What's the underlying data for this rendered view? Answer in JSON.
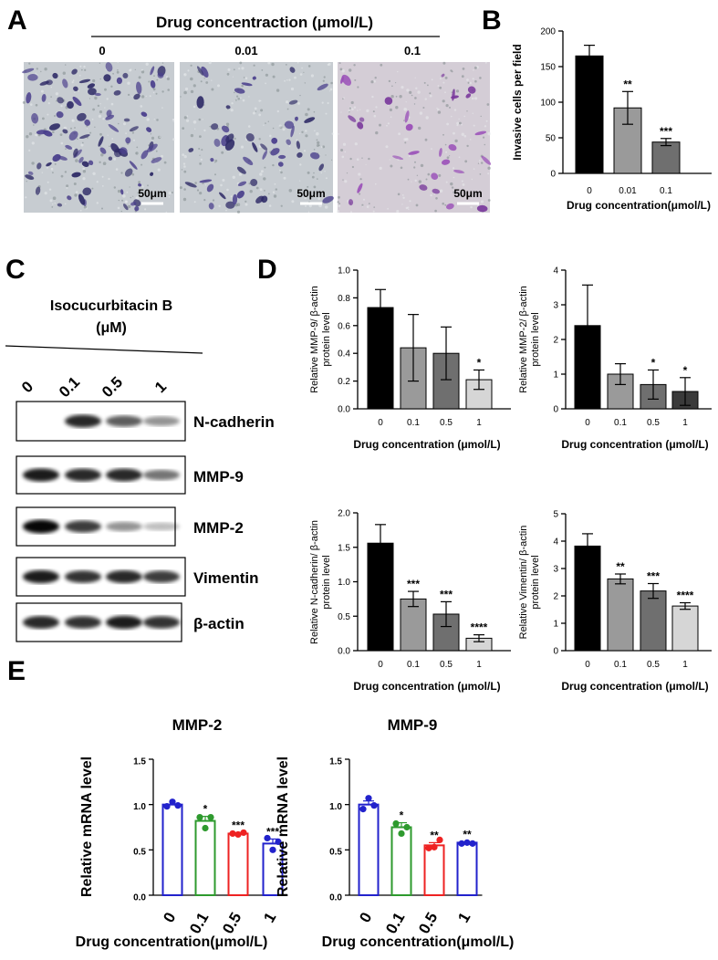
{
  "panels": {
    "A": "A",
    "B": "B",
    "C": "C",
    "D": "D",
    "E": "E"
  },
  "panel_a": {
    "title": "Drug concentraction (μmol/L)",
    "images": [
      {
        "label": "0",
        "scalebar": "50μm"
      },
      {
        "label": "0.01",
        "scalebar": "50μm"
      },
      {
        "label": "0.1",
        "scalebar": "50μm"
      }
    ]
  },
  "panel_c": {
    "treatment_line1": "Isocucurbitacin B",
    "treatment_line2": "(μM)",
    "lanes": [
      "0",
      "0.1",
      "0.5",
      "1"
    ],
    "blots": [
      {
        "label": "N-cadherin",
        "intensity": [
          0.0,
          0.85,
          0.6,
          0.35
        ]
      },
      {
        "label": "MMP-9",
        "intensity": [
          0.9,
          0.85,
          0.85,
          0.5
        ]
      },
      {
        "label": "MMP-2",
        "intensity": [
          1.0,
          0.75,
          0.35,
          0.15
        ]
      },
      {
        "label": "Vimentin",
        "intensity": [
          0.9,
          0.8,
          0.85,
          0.75
        ]
      },
      {
        "label": "β-actin",
        "intensity": [
          0.85,
          0.8,
          0.9,
          0.8
        ]
      }
    ]
  },
  "chart_data": [
    {
      "id": "B",
      "type": "bar",
      "categories": [
        "0",
        "0.01",
        "0.1"
      ],
      "values": [
        165,
        92,
        44
      ],
      "errors": [
        15,
        23,
        5
      ],
      "significance": [
        "",
        "**",
        "***"
      ],
      "xlabel": "Drug concentration(μmol/L)",
      "ylabel": "Invasive cells per field",
      "ylim": [
        0,
        200
      ],
      "yticks": [
        0,
        50,
        100,
        150,
        200
      ],
      "colors": [
        "#000000",
        "#9a9a9a",
        "#6f6f6f"
      ]
    },
    {
      "id": "D1",
      "type": "bar",
      "categories": [
        "0",
        "0.1",
        "0.5",
        "1"
      ],
      "values": [
        0.73,
        0.44,
        0.4,
        0.21
      ],
      "errors": [
        0.13,
        0.24,
        0.19,
        0.07
      ],
      "significance": [
        "",
        "",
        "",
        "*"
      ],
      "xlabel": "Drug concentration (μmol/L)",
      "ylabel_line1": "Relative MMP-9/ β-actin",
      "ylabel_line2": "protein level",
      "ylim": [
        0,
        1.0
      ],
      "yticks": [
        0.0,
        0.2,
        0.4,
        0.6,
        0.8,
        1.0
      ],
      "tick_format": "0.0",
      "colors": [
        "#000000",
        "#9a9a9a",
        "#6f6f6f",
        "#d6d6d6"
      ]
    },
    {
      "id": "D2",
      "type": "bar",
      "categories": [
        "0",
        "0.1",
        "0.5",
        "1"
      ],
      "values": [
        2.4,
        1.0,
        0.7,
        0.5
      ],
      "errors": [
        1.17,
        0.3,
        0.42,
        0.4
      ],
      "significance": [
        "",
        "",
        "*",
        "*"
      ],
      "xlabel": "Drug concentration (μmol/L)",
      "ylabel_line1": "Relative MMP-2/ β-actin",
      "ylabel_line2": "protein level",
      "ylim": [
        0,
        4
      ],
      "yticks": [
        0,
        1,
        2,
        3,
        4
      ],
      "tick_format": "0",
      "colors": [
        "#000000",
        "#9a9a9a",
        "#6f6f6f",
        "#3a3a3a"
      ]
    },
    {
      "id": "D3",
      "type": "bar",
      "categories": [
        "0",
        "0.1",
        "0.5",
        "1"
      ],
      "values": [
        1.56,
        0.75,
        0.53,
        0.18
      ],
      "errors": [
        0.27,
        0.11,
        0.18,
        0.05
      ],
      "significance": [
        "",
        "***",
        "***",
        "****"
      ],
      "xlabel": "Drug concentration (μmol/L)",
      "ylabel_line1": "Relative N-cadherin/ β-actin",
      "ylabel_line2": "protein level",
      "ylim": [
        0,
        2.0
      ],
      "yticks": [
        0.0,
        0.5,
        1.0,
        1.5,
        2.0
      ],
      "tick_format": "0.0",
      "colors": [
        "#000000",
        "#9a9a9a",
        "#6f6f6f",
        "#d6d6d6"
      ]
    },
    {
      "id": "D4",
      "type": "bar",
      "categories": [
        "0",
        "0.1",
        "0.5",
        "1"
      ],
      "values": [
        3.82,
        2.62,
        2.18,
        1.63
      ],
      "errors": [
        0.45,
        0.18,
        0.27,
        0.12
      ],
      "significance": [
        "",
        "**",
        "***",
        "****"
      ],
      "xlabel": "Drug concentration (μmol/L)",
      "ylabel_line1": "Relative Vimentin/ β-actin",
      "ylabel_line2": "protein level",
      "ylim": [
        0,
        5
      ],
      "yticks": [
        0,
        1,
        2,
        3,
        4,
        5
      ],
      "tick_format": "0",
      "colors": [
        "#000000",
        "#9a9a9a",
        "#6f6f6f",
        "#d6d6d6"
      ]
    },
    {
      "id": "E1",
      "type": "bar",
      "title": "MMP-2",
      "categories": [
        "0",
        "0.1",
        "0.5",
        "1"
      ],
      "values": [
        1.0,
        0.82,
        0.68,
        0.57
      ],
      "errors": [
        0.0,
        0.05,
        0.01,
        0.05
      ],
      "points": [
        [
          0.98,
          1.03,
          0.99
        ],
        [
          0.86,
          0.74,
          0.86
        ],
        [
          0.68,
          0.67,
          0.69
        ],
        [
          0.63,
          0.5,
          0.59
        ]
      ],
      "significance": [
        "",
        "*",
        "***",
        "***"
      ],
      "xlabel": "Drug concentration(μmol/L)",
      "ylabel": "Relative mRNA level",
      "ylim": [
        0,
        1.5
      ],
      "yticks": [
        0.0,
        0.5,
        1.0,
        1.5
      ],
      "tick_format": "0.0",
      "colors": [
        "#2222cc",
        "#2e9a2e",
        "#ee2222",
        "#2222cc"
      ]
    },
    {
      "id": "E2",
      "type": "bar",
      "title": "MMP-9",
      "categories": [
        "0",
        "0.1",
        "0.5",
        "1"
      ],
      "values": [
        1.0,
        0.75,
        0.55,
        0.58
      ],
      "errors": [
        0.04,
        0.05,
        0.03,
        0.01
      ],
      "points": [
        [
          0.95,
          1.07,
          0.99
        ],
        [
          0.79,
          0.68,
          0.75
        ],
        [
          0.52,
          0.53,
          0.61
        ],
        [
          0.57,
          0.58,
          0.57
        ]
      ],
      "significance": [
        "",
        "*",
        "**",
        "**"
      ],
      "xlabel": "Drug concentration(μmol/L)",
      "ylabel": "Relative mRNA level",
      "ylim": [
        0,
        1.5
      ],
      "yticks": [
        0.0,
        0.5,
        1.0,
        1.5
      ],
      "tick_format": "0.0",
      "colors": [
        "#2222cc",
        "#2e9a2e",
        "#ee2222",
        "#2222cc"
      ]
    }
  ]
}
